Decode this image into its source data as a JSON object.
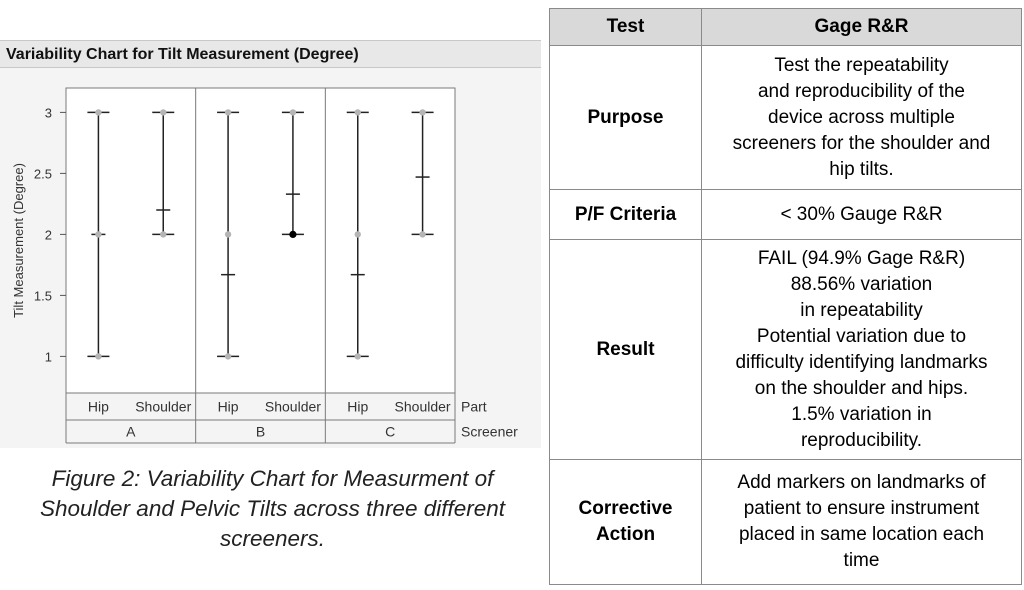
{
  "chart_data": {
    "type": "variability",
    "title": "Variability Chart for Tilt Measurement (Degree)",
    "ylabel": "Tilt Measurement (Degree)",
    "ylim": [
      0.7,
      3.2
    ],
    "yticks": [
      "1",
      "1.5",
      "2",
      "2.5",
      "3"
    ],
    "ytick_values": [
      1,
      1.5,
      2,
      2.5,
      3
    ],
    "x_levels": [
      {
        "name": "Part",
        "label": "Part"
      },
      {
        "name": "Screener",
        "label": "Screener"
      }
    ],
    "groups": [
      {
        "screener": "A",
        "parts": [
          {
            "part": "Hip",
            "points": [
              1,
              2,
              3
            ],
            "mean": 2.0,
            "min": 1,
            "max": 3
          },
          {
            "part": "Shoulder",
            "points": [
              2,
              3
            ],
            "mean": 2.2,
            "min": 2,
            "max": 3
          }
        ]
      },
      {
        "screener": "B",
        "parts": [
          {
            "part": "Hip",
            "points": [
              1,
              2,
              3
            ],
            "mean": 1.67,
            "min": 1,
            "max": 3
          },
          {
            "part": "Shoulder",
            "points": [
              2,
              3
            ],
            "mean": 2.33,
            "min": 2,
            "max": 3,
            "highlight": 2
          }
        ]
      },
      {
        "screener": "C",
        "parts": [
          {
            "part": "Hip",
            "points": [
              1,
              2,
              3
            ],
            "mean": 1.67,
            "min": 1,
            "max": 3
          },
          {
            "part": "Shoulder",
            "points": [
              2,
              3
            ],
            "mean": 2.47,
            "min": 2,
            "max": 3
          }
        ]
      }
    ],
    "grid": false
  },
  "caption": "Figure 2: Variability Chart for Measurment of Shoulder and Pelvic Tilts across three different screeners.",
  "caption_lines": [
    "Figure 2: Variability Chart for Measurment of",
    "Shoulder and Pelvic Tilts across three different",
    "screeners."
  ],
  "table": {
    "headers": [
      "Test",
      "Gage R&R"
    ],
    "rows": [
      {
        "label": "Purpose",
        "lines": [
          "Test the repeatability",
          "and reproducibility of the",
          "device across multiple",
          "screeners for the shoulder and",
          "hip tilts."
        ]
      },
      {
        "label": "P/F Criteria",
        "lines": [
          "< 30% Gauge R&R"
        ]
      },
      {
        "label": "Result",
        "lines": [
          "FAIL (94.9% Gage R&R)",
          "88.56% variation",
          "in repeatability",
          "Potential variation due to",
          "difficulty identifying landmarks",
          "on the shoulder and hips.",
          "1.5% variation in",
          "reproducibility."
        ]
      },
      {
        "label": "Corrective Action",
        "label_lines": [
          "Corrective",
          "Action"
        ],
        "lines": [
          "Add markers on landmarks of",
          "patient to ensure instrument",
          "placed in same location each",
          "time"
        ]
      }
    ]
  },
  "colors": {
    "line": "#222222",
    "point": "#b5b5b5",
    "highlight_point": "#000000",
    "title_bg": "#e8e8e8",
    "header_bg": "#d9d9d9"
  }
}
